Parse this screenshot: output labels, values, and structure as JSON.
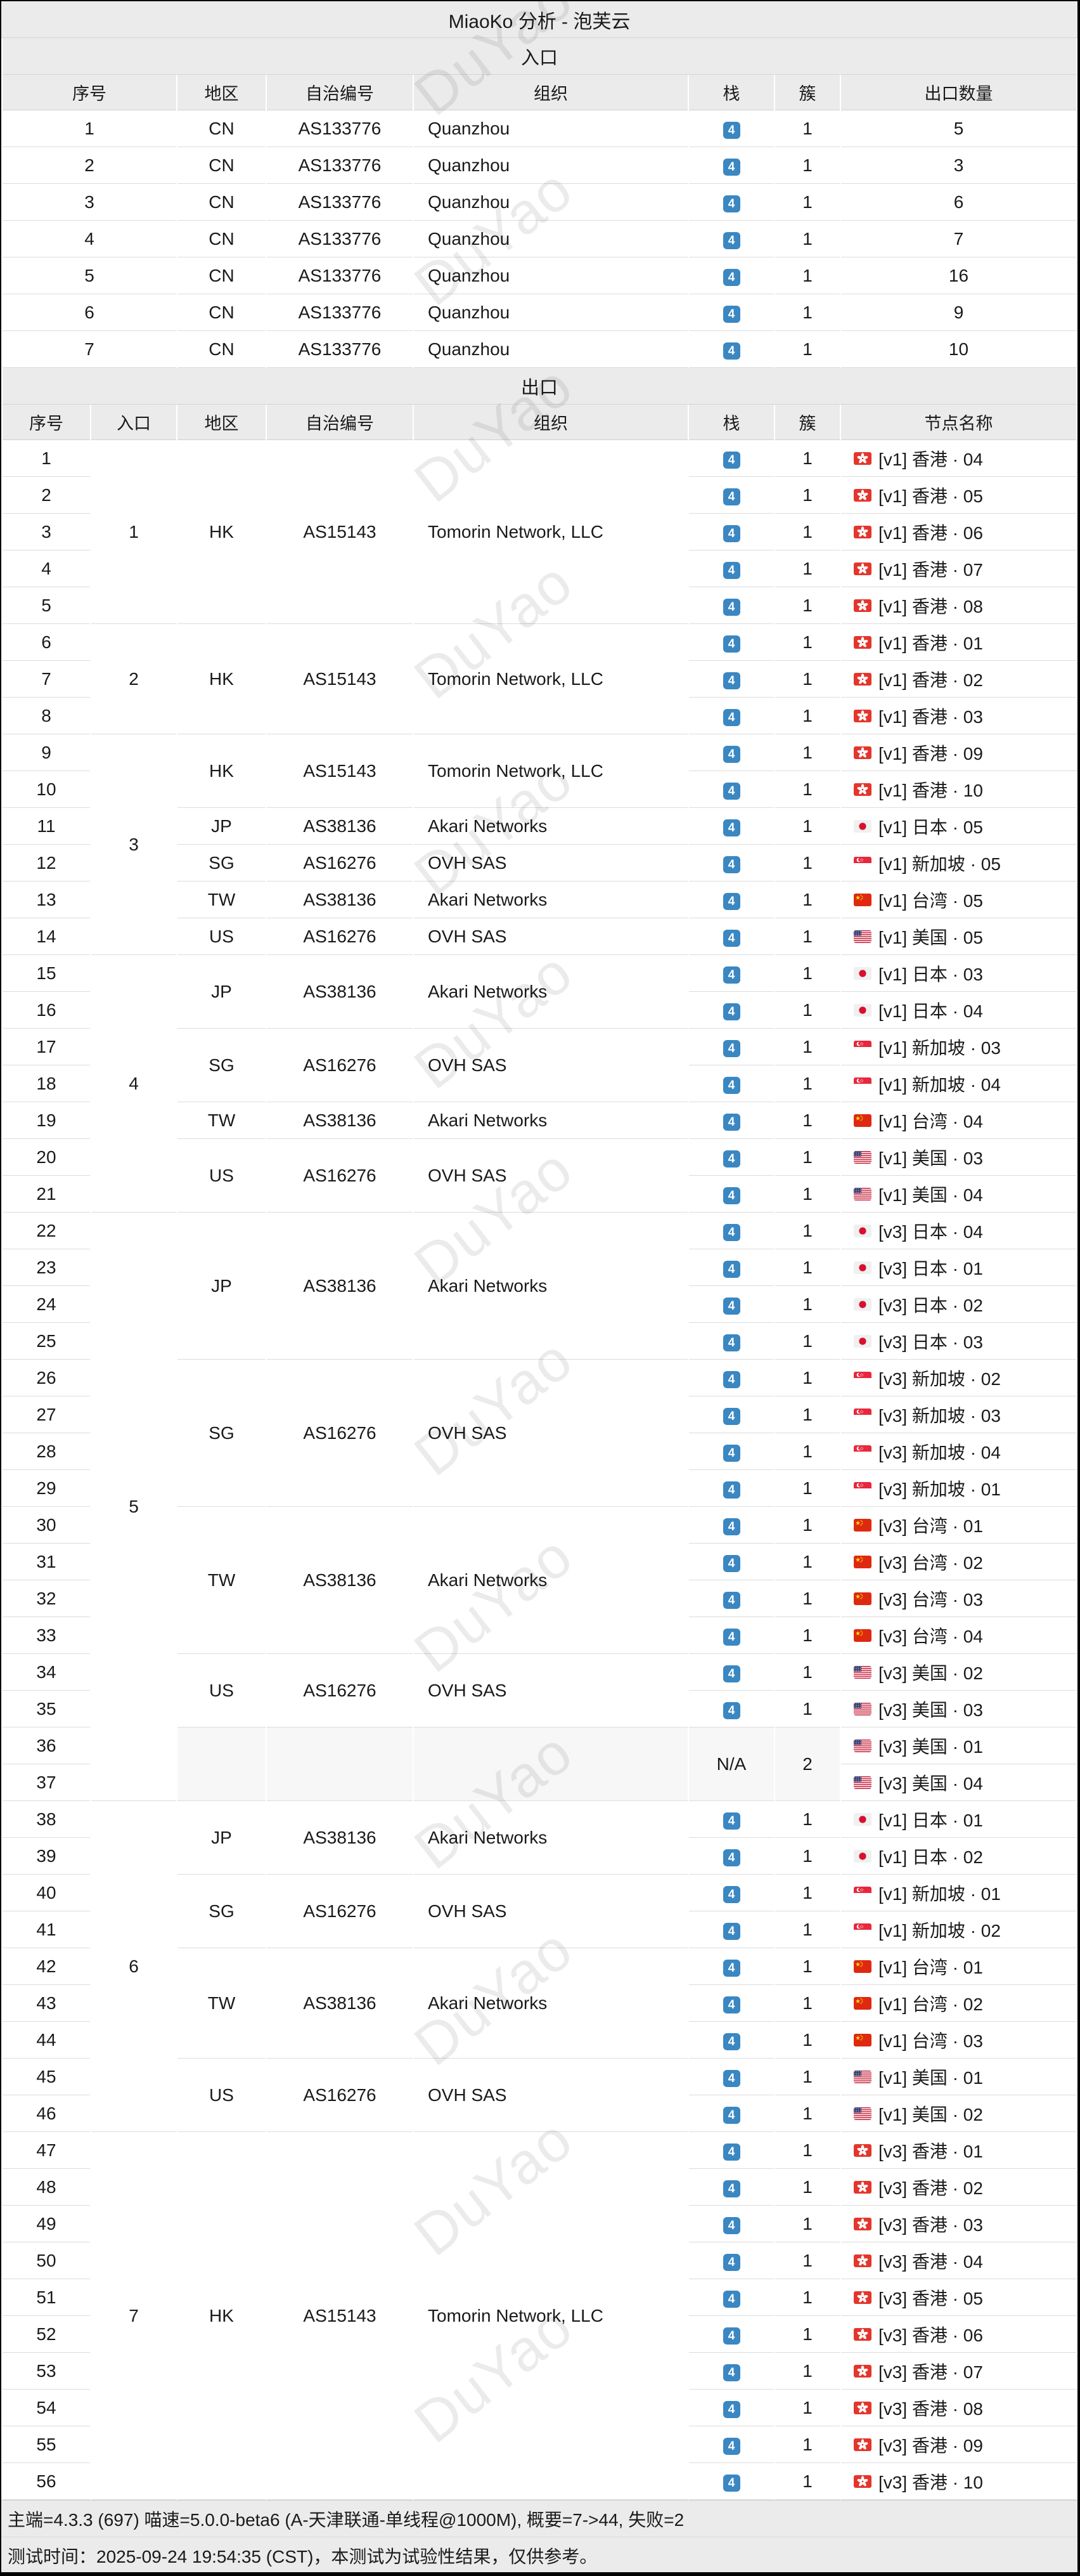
{
  "page_title": "MiaoKo 分析 - 泡芙云",
  "watermark_text": "DuYao",
  "colors": {
    "accent_blue": "#3a87c2",
    "header_bg": "#ebebeb",
    "muted_cell_bg": "#f7f7f7",
    "hk_red": "#e4352c",
    "cn_red": "#de2910",
    "cn_yellow": "#ffde00",
    "jp_red": "#d8102e",
    "sg_red": "#e8273c",
    "us_stripe_red": "#c7203a",
    "us_canton_blue": "#3a3c6e"
  },
  "entrance_table": {
    "title": "入口",
    "headers": [
      "序号",
      "地区",
      "自治编号",
      "组织",
      "栈",
      "簇",
      "出口数量"
    ],
    "rows": [
      {
        "idx": "1",
        "region": "CN",
        "asn": "AS133776",
        "org": "Quanzhou",
        "stack": "4",
        "cluster": "1",
        "exit_count": "5"
      },
      {
        "idx": "2",
        "region": "CN",
        "asn": "AS133776",
        "org": "Quanzhou",
        "stack": "4",
        "cluster": "1",
        "exit_count": "3"
      },
      {
        "idx": "3",
        "region": "CN",
        "asn": "AS133776",
        "org": "Quanzhou",
        "stack": "4",
        "cluster": "1",
        "exit_count": "6"
      },
      {
        "idx": "4",
        "region": "CN",
        "asn": "AS133776",
        "org": "Quanzhou",
        "stack": "4",
        "cluster": "1",
        "exit_count": "7"
      },
      {
        "idx": "5",
        "region": "CN",
        "asn": "AS133776",
        "org": "Quanzhou",
        "stack": "4",
        "cluster": "1",
        "exit_count": "16"
      },
      {
        "idx": "6",
        "region": "CN",
        "asn": "AS133776",
        "org": "Quanzhou",
        "stack": "4",
        "cluster": "1",
        "exit_count": "9"
      },
      {
        "idx": "7",
        "region": "CN",
        "asn": "AS133776",
        "org": "Quanzhou",
        "stack": "4",
        "cluster": "1",
        "exit_count": "10"
      }
    ]
  },
  "exit_table": {
    "title": "出口",
    "headers": [
      "序号",
      "入口",
      "地区",
      "自治编号",
      "组织",
      "栈",
      "簇",
      "节点名称"
    ],
    "entrance_groups": [
      {
        "label": "1",
        "from": 1,
        "to": 5
      },
      {
        "label": "2",
        "from": 6,
        "to": 8
      },
      {
        "label": "3",
        "from": 9,
        "to": 14
      },
      {
        "label": "4",
        "from": 15,
        "to": 21
      },
      {
        "label": "5",
        "from": 22,
        "to": 37
      },
      {
        "label": "6",
        "from": 38,
        "to": 46
      },
      {
        "label": "7",
        "from": 47,
        "to": 56
      }
    ],
    "region_groups": [
      {
        "from": 1,
        "to": 5,
        "region": "HK",
        "asn": "AS15143",
        "org": "Tomorin Network, LLC"
      },
      {
        "from": 6,
        "to": 8,
        "region": "HK",
        "asn": "AS15143",
        "org": "Tomorin Network, LLC"
      },
      {
        "from": 9,
        "to": 10,
        "region": "HK",
        "asn": "AS15143",
        "org": "Tomorin Network, LLC"
      },
      {
        "from": 11,
        "to": 11,
        "region": "JP",
        "asn": "AS38136",
        "org": "Akari Networks"
      },
      {
        "from": 12,
        "to": 12,
        "region": "SG",
        "asn": "AS16276",
        "org": "OVH SAS"
      },
      {
        "from": 13,
        "to": 13,
        "region": "TW",
        "asn": "AS38136",
        "org": "Akari Networks"
      },
      {
        "from": 14,
        "to": 14,
        "region": "US",
        "asn": "AS16276",
        "org": "OVH SAS"
      },
      {
        "from": 15,
        "to": 16,
        "region": "JP",
        "asn": "AS38136",
        "org": "Akari Networks"
      },
      {
        "from": 17,
        "to": 18,
        "region": "SG",
        "asn": "AS16276",
        "org": "OVH SAS"
      },
      {
        "from": 19,
        "to": 19,
        "region": "TW",
        "asn": "AS38136",
        "org": "Akari Networks"
      },
      {
        "from": 20,
        "to": 21,
        "region": "US",
        "asn": "AS16276",
        "org": "OVH SAS"
      },
      {
        "from": 22,
        "to": 25,
        "region": "JP",
        "asn": "AS38136",
        "org": "Akari Networks"
      },
      {
        "from": 26,
        "to": 29,
        "region": "SG",
        "asn": "AS16276",
        "org": "OVH SAS"
      },
      {
        "from": 30,
        "to": 33,
        "region": "TW",
        "asn": "AS38136",
        "org": "Akari Networks"
      },
      {
        "from": 34,
        "to": 35,
        "region": "US",
        "asn": "AS16276",
        "org": "OVH SAS"
      },
      {
        "from": 36,
        "to": 37,
        "region": "",
        "asn": "",
        "org": "",
        "muted": true
      },
      {
        "from": 38,
        "to": 39,
        "region": "JP",
        "asn": "AS38136",
        "org": "Akari Networks"
      },
      {
        "from": 40,
        "to": 41,
        "region": "SG",
        "asn": "AS16276",
        "org": "OVH SAS"
      },
      {
        "from": 42,
        "to": 44,
        "region": "TW",
        "asn": "AS38136",
        "org": "Akari Networks"
      },
      {
        "from": 45,
        "to": 46,
        "region": "US",
        "asn": "AS16276",
        "org": "OVH SAS"
      },
      {
        "from": 47,
        "to": 56,
        "region": "HK",
        "asn": "AS15143",
        "org": "Tomorin Network, LLC"
      }
    ],
    "special_stack_group": {
      "from": 36,
      "to": 37,
      "stack": "N/A",
      "cluster": "2"
    },
    "rows": [
      {
        "idx": "1",
        "stack": "4",
        "cluster": "1",
        "flag": "hk",
        "name": "[v1] 香港 · 04"
      },
      {
        "idx": "2",
        "stack": "4",
        "cluster": "1",
        "flag": "hk",
        "name": "[v1] 香港 · 05"
      },
      {
        "idx": "3",
        "stack": "4",
        "cluster": "1",
        "flag": "hk",
        "name": "[v1] 香港 · 06"
      },
      {
        "idx": "4",
        "stack": "4",
        "cluster": "1",
        "flag": "hk",
        "name": "[v1] 香港 · 07"
      },
      {
        "idx": "5",
        "stack": "4",
        "cluster": "1",
        "flag": "hk",
        "name": "[v1] 香港 · 08"
      },
      {
        "idx": "6",
        "stack": "4",
        "cluster": "1",
        "flag": "hk",
        "name": "[v1] 香港 · 01"
      },
      {
        "idx": "7",
        "stack": "4",
        "cluster": "1",
        "flag": "hk",
        "name": "[v1] 香港 · 02"
      },
      {
        "idx": "8",
        "stack": "4",
        "cluster": "1",
        "flag": "hk",
        "name": "[v1] 香港 · 03"
      },
      {
        "idx": "9",
        "stack": "4",
        "cluster": "1",
        "flag": "hk",
        "name": "[v1] 香港 · 09"
      },
      {
        "idx": "10",
        "stack": "4",
        "cluster": "1",
        "flag": "hk",
        "name": "[v1] 香港 · 10"
      },
      {
        "idx": "11",
        "stack": "4",
        "cluster": "1",
        "flag": "jp",
        "name": "[v1] 日本 · 05"
      },
      {
        "idx": "12",
        "stack": "4",
        "cluster": "1",
        "flag": "sg",
        "name": "[v1] 新加坡 · 05"
      },
      {
        "idx": "13",
        "stack": "4",
        "cluster": "1",
        "flag": "cn",
        "name": "[v1] 台湾 · 05"
      },
      {
        "idx": "14",
        "stack": "4",
        "cluster": "1",
        "flag": "us",
        "name": "[v1] 美国 · 05"
      },
      {
        "idx": "15",
        "stack": "4",
        "cluster": "1",
        "flag": "jp",
        "name": "[v1] 日本 · 03"
      },
      {
        "idx": "16",
        "stack": "4",
        "cluster": "1",
        "flag": "jp",
        "name": "[v1] 日本 · 04"
      },
      {
        "idx": "17",
        "stack": "4",
        "cluster": "1",
        "flag": "sg",
        "name": "[v1] 新加坡 · 03"
      },
      {
        "idx": "18",
        "stack": "4",
        "cluster": "1",
        "flag": "sg",
        "name": "[v1] 新加坡 · 04"
      },
      {
        "idx": "19",
        "stack": "4",
        "cluster": "1",
        "flag": "cn",
        "name": "[v1] 台湾 · 04"
      },
      {
        "idx": "20",
        "stack": "4",
        "cluster": "1",
        "flag": "us",
        "name": "[v1] 美国 · 03"
      },
      {
        "idx": "21",
        "stack": "4",
        "cluster": "1",
        "flag": "us",
        "name": "[v1] 美国 · 04"
      },
      {
        "idx": "22",
        "stack": "4",
        "cluster": "1",
        "flag": "jp",
        "name": "[v3] 日本 · 04"
      },
      {
        "idx": "23",
        "stack": "4",
        "cluster": "1",
        "flag": "jp",
        "name": "[v3] 日本 · 01"
      },
      {
        "idx": "24",
        "stack": "4",
        "cluster": "1",
        "flag": "jp",
        "name": "[v3] 日本 · 02"
      },
      {
        "idx": "25",
        "stack": "4",
        "cluster": "1",
        "flag": "jp",
        "name": "[v3] 日本 · 03"
      },
      {
        "idx": "26",
        "stack": "4",
        "cluster": "1",
        "flag": "sg",
        "name": "[v3] 新加坡 · 02"
      },
      {
        "idx": "27",
        "stack": "4",
        "cluster": "1",
        "flag": "sg",
        "name": "[v3] 新加坡 · 03"
      },
      {
        "idx": "28",
        "stack": "4",
        "cluster": "1",
        "flag": "sg",
        "name": "[v3] 新加坡 · 04"
      },
      {
        "idx": "29",
        "stack": "4",
        "cluster": "1",
        "flag": "sg",
        "name": "[v3] 新加坡 · 01"
      },
      {
        "idx": "30",
        "stack": "4",
        "cluster": "1",
        "flag": "cn",
        "name": "[v3] 台湾 · 01"
      },
      {
        "idx": "31",
        "stack": "4",
        "cluster": "1",
        "flag": "cn",
        "name": "[v3] 台湾 · 02"
      },
      {
        "idx": "32",
        "stack": "4",
        "cluster": "1",
        "flag": "cn",
        "name": "[v3] 台湾 · 03"
      },
      {
        "idx": "33",
        "stack": "4",
        "cluster": "1",
        "flag": "cn",
        "name": "[v3] 台湾 · 04"
      },
      {
        "idx": "34",
        "stack": "4",
        "cluster": "1",
        "flag": "us",
        "name": "[v3] 美国 · 02"
      },
      {
        "idx": "35",
        "stack": "4",
        "cluster": "1",
        "flag": "us",
        "name": "[v3] 美国 · 03"
      },
      {
        "idx": "36",
        "flag": "us",
        "name": "[v3] 美国 · 01"
      },
      {
        "idx": "37",
        "flag": "us",
        "name": "[v3] 美国 · 04"
      },
      {
        "idx": "38",
        "stack": "4",
        "cluster": "1",
        "flag": "jp",
        "name": "[v1] 日本 · 01"
      },
      {
        "idx": "39",
        "stack": "4",
        "cluster": "1",
        "flag": "jp",
        "name": "[v1] 日本 · 02"
      },
      {
        "idx": "40",
        "stack": "4",
        "cluster": "1",
        "flag": "sg",
        "name": "[v1] 新加坡 · 01"
      },
      {
        "idx": "41",
        "stack": "4",
        "cluster": "1",
        "flag": "sg",
        "name": "[v1] 新加坡 · 02"
      },
      {
        "idx": "42",
        "stack": "4",
        "cluster": "1",
        "flag": "cn",
        "name": "[v1] 台湾 · 01"
      },
      {
        "idx": "43",
        "stack": "4",
        "cluster": "1",
        "flag": "cn",
        "name": "[v1] 台湾 · 02"
      },
      {
        "idx": "44",
        "stack": "4",
        "cluster": "1",
        "flag": "cn",
        "name": "[v1] 台湾 · 03"
      },
      {
        "idx": "45",
        "stack": "4",
        "cluster": "1",
        "flag": "us",
        "name": "[v1] 美国 · 01"
      },
      {
        "idx": "46",
        "stack": "4",
        "cluster": "1",
        "flag": "us",
        "name": "[v1] 美国 · 02"
      },
      {
        "idx": "47",
        "stack": "4",
        "cluster": "1",
        "flag": "hk",
        "name": "[v3] 香港 · 01"
      },
      {
        "idx": "48",
        "stack": "4",
        "cluster": "1",
        "flag": "hk",
        "name": "[v3] 香港 · 02"
      },
      {
        "idx": "49",
        "stack": "4",
        "cluster": "1",
        "flag": "hk",
        "name": "[v3] 香港 · 03"
      },
      {
        "idx": "50",
        "stack": "4",
        "cluster": "1",
        "flag": "hk",
        "name": "[v3] 香港 · 04"
      },
      {
        "idx": "51",
        "stack": "4",
        "cluster": "1",
        "flag": "hk",
        "name": "[v3] 香港 · 05"
      },
      {
        "idx": "52",
        "stack": "4",
        "cluster": "1",
        "flag": "hk",
        "name": "[v3] 香港 · 06"
      },
      {
        "idx": "53",
        "stack": "4",
        "cluster": "1",
        "flag": "hk",
        "name": "[v3] 香港 · 07"
      },
      {
        "idx": "54",
        "stack": "4",
        "cluster": "1",
        "flag": "hk",
        "name": "[v3] 香港 · 08"
      },
      {
        "idx": "55",
        "stack": "4",
        "cluster": "1",
        "flag": "hk",
        "name": "[v3] 香港 · 09"
      },
      {
        "idx": "56",
        "stack": "4",
        "cluster": "1",
        "flag": "hk",
        "name": "[v3] 香港 · 10"
      }
    ]
  },
  "footer": {
    "line1": "主端=4.3.3 (697) 喵速=5.0.0-beta6 (A-天津联通-单线程@1000M), 概要=7->44, 失败=2",
    "line2": "测试时间：2025-09-24 19:54:35 (CST)，本测试为试验性结果，仅供参考。"
  }
}
